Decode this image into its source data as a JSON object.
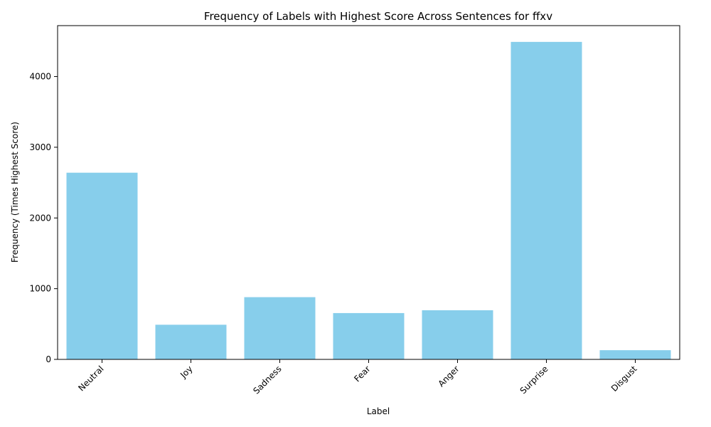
{
  "chart_data": {
    "type": "bar",
    "title": "Frequency of Labels with Highest Score Across Sentences for ffxv",
    "xlabel": "Label",
    "ylabel": "Frequency (Times Highest Score)",
    "categories": [
      "Neutral",
      "Joy",
      "Sadness",
      "Fear",
      "Anger",
      "Surprise",
      "Disgust"
    ],
    "values": [
      2640,
      490,
      880,
      655,
      695,
      4490,
      130
    ],
    "ylim": [
      0,
      4720
    ],
    "yticks": [
      0,
      1000,
      2000,
      3000,
      4000
    ],
    "bar_color": "#87CEEB",
    "grid": false,
    "legend": "none"
  }
}
